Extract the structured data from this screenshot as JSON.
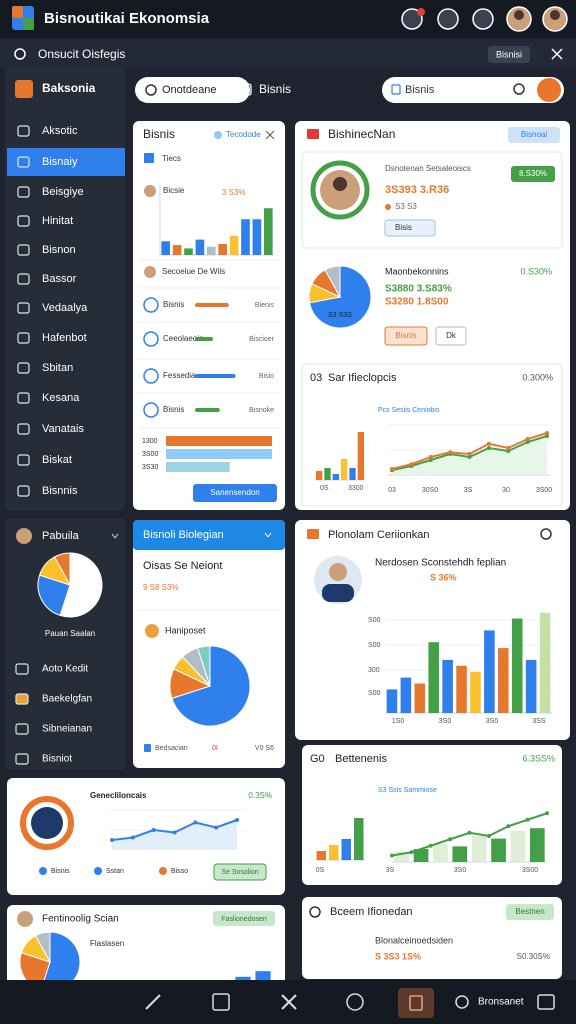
{
  "header": {
    "title": "Bisnoutikai Ekonomsia",
    "search": "Onsucit Oisfegis",
    "search_button": "Bisnisi"
  },
  "sidebar": {
    "title": "Baksonia",
    "items": [
      "Aksotic",
      "Bisnaiy",
      "Beisgiye",
      "Hinitat",
      "Bisnon",
      "Bassor",
      "Vedaalya",
      "Hafenbot",
      "Sbitan",
      "Kesana",
      "Vanatais",
      "Biskat",
      "Bisnnis"
    ]
  },
  "toolbar": {
    "tab": "Onotdeane",
    "link": "Bisnis",
    "search": "Bisnis"
  },
  "panel_a": {
    "title": "Bisnis",
    "badge": "Tecodode",
    "tag": "Tiecs",
    "label": "Bicsie",
    "value": "3 S3%",
    "bars": {
      "ylim": [
        0,
        100
      ],
      "values": [
        25,
        18,
        12,
        28,
        15,
        20,
        35,
        65,
        65,
        85
      ],
      "colors": [
        "#2f80ed",
        "#e8772e",
        "#43a047",
        "#2f80ed",
        "#b0bec5",
        "#e8772e",
        "#fbc02d",
        "#2f80ed",
        "#2f80ed",
        "#43a047"
      ]
    },
    "person": "Secoelue De Wils",
    "rows": [
      {
        "label": "Bisnis",
        "note": "Bienis",
        "progress": 75,
        "color": "#e8772e"
      },
      {
        "label": "Ceeolaeoia",
        "note": "Biscioer",
        "progress": 40,
        "color": "#43a047"
      },
      {
        "label": "Fessedia",
        "note": "Bisio",
        "progress": 90,
        "color": "#2f80ed"
      },
      {
        "label": "Bisnis",
        "note": "Bisnoke",
        "progress": 55,
        "color": "#43a047"
      }
    ],
    "hbars": {
      "xlim": [
        0,
        100
      ],
      "labels": [
        "1300",
        "3S00",
        "3S30"
      ],
      "values": [
        100,
        100,
        60
      ],
      "colors": [
        "#e8772e",
        "#90caf9",
        "#9ed3e6"
      ]
    },
    "button": "Sanensendon"
  },
  "panel_b": {
    "title": "BishinecNan",
    "badge": "Bisnoai",
    "profile": {
      "name": "Dsnotenan Setsaleoiscs",
      "value": "3S393 3.R36",
      "sub": "S3 S3",
      "badge": "8.S30%",
      "select": "Bisis"
    },
    "pie": {
      "values": [
        72,
        10,
        10,
        8
      ],
      "colors": [
        "#2f80ed",
        "#fbc02d",
        "#e8772e",
        "#b0bec5"
      ],
      "label": "S3 S3S"
    },
    "stats": {
      "title": "Maonbekonnins",
      "pct": "0.S30%",
      "line1": "S3880 3.S83%",
      "line2": "S3280 1.8S00",
      "btn1": "Bisnis",
      "btn2": "Dk"
    },
    "trend": {
      "prefix": "03",
      "title": "Sar Ifieclopcis",
      "value": "0.300%",
      "sub": "Pcs Sesiis Ceniobis",
      "bars": {
        "ylim": [
          0,
          100
        ],
        "values": [
          15,
          20,
          10,
          35,
          20,
          80
        ],
        "colors": [
          "#e8772e",
          "#43a047",
          "#2f80ed",
          "#fbc02d",
          "#2f80ed",
          "#e8772e"
        ]
      },
      "lines": [
        {
          "ylim": [
            0,
            100
          ],
          "values": [
            10,
            18,
            30,
            38,
            35,
            52,
            45,
            60,
            70
          ],
          "color": "#e8772e"
        },
        {
          "ylim": [
            0,
            100
          ],
          "values": [
            8,
            15,
            25,
            35,
            30,
            45,
            40,
            55,
            65
          ],
          "color": "#43a047"
        }
      ],
      "left_labels": [
        "0S",
        "3300"
      ],
      "xlabels": [
        "03",
        "30S0",
        "3S",
        "30",
        "3S00"
      ]
    }
  },
  "profile_card": {
    "title": "Pabuila",
    "pie": {
      "values": [
        55,
        25,
        12,
        8
      ],
      "colors": [
        "#ffffff",
        "#2f80ed",
        "#fbc02d",
        "#e8772e"
      ]
    },
    "caption": "Pauan Saalan",
    "items": [
      "Aoto Kedit",
      "Baekelgfan",
      "Sibneianan",
      "Bisniot"
    ]
  },
  "panel_c": {
    "header": "Bisnoli Biolegian",
    "subtitle": "Oisas Se Neiont",
    "value": "9 S8 S3%",
    "section": "Haniposet",
    "pie": {
      "values": [
        70,
        12,
        6,
        7,
        5
      ],
      "colors": [
        "#2f80ed",
        "#e8772e",
        "#fbc02d",
        "#b0bec5",
        "#80cbc4"
      ]
    },
    "footer_left": "Bedsacian",
    "footer_mid": "0I",
    "footer_right": "V0 S6"
  },
  "panel_d": {
    "title": "Plonolam Ceriionkan",
    "subtitle": "Nerdosen Sconstehdh feplian",
    "value": "S 36%",
    "bars": {
      "ylim": [
        0,
        100
      ],
      "values": [
        20,
        30,
        25,
        60,
        45,
        40,
        35,
        70,
        55,
        80,
        45,
        85
      ],
      "colors": [
        "#2f80ed",
        "#2f80ed",
        "#e8772e",
        "#43a047",
        "#2f80ed",
        "#e8772e",
        "#fbc02d",
        "#2f80ed",
        "#e8772e",
        "#43a047",
        "#2f80ed",
        "#c5e1a5"
      ]
    },
    "ylabels": [
      "S00",
      "S00",
      "300",
      "S00"
    ],
    "xlabels": [
      "1S0",
      "3S0",
      "3S0",
      "3SS"
    ]
  },
  "panel_e": {
    "prefix": "G0",
    "title": "Bettenenis",
    "value": "6.3SS%",
    "sub": "S3 Ssis Sammiose",
    "bars": {
      "ylim": [
        0,
        100
      ],
      "values": [
        15,
        25,
        35,
        70
      ],
      "colors": [
        "#e8772e",
        "#fbc02d",
        "#2f80ed",
        "#43a047"
      ]
    },
    "bars2": {
      "ylim": [
        0,
        100
      ],
      "values": [
        20,
        25,
        35,
        30,
        50,
        45,
        60,
        65
      ],
      "colors": [
        "#e0eed8",
        "#43a047",
        "#e0eed8",
        "#43a047",
        "#e0eed8",
        "#43a047",
        "#e0eed8",
        "#43a047"
      ]
    },
    "line": {
      "ylim": [
        0,
        100
      ],
      "values": [
        10,
        15,
        25,
        35,
        45,
        40,
        55,
        65,
        75
      ],
      "color": "#43a047"
    },
    "xlabels": [
      "0S",
      "3S",
      "3S0",
      "3S00"
    ]
  },
  "panel_f": {
    "title": "Genecliloncais",
    "value": "0.3S%",
    "line": {
      "ylim": [
        0,
        100
      ],
      "values": [
        20,
        25,
        40,
        35,
        55,
        45,
        60
      ],
      "color": "#2f80ed"
    },
    "legend": [
      "Bisnis",
      "Sstan",
      "Bisso"
    ],
    "button": "Se Snsolion"
  },
  "panel_g": {
    "title": "Fentinoolig Scian",
    "badge": "Faslionedosen",
    "sub": "Flaslasen",
    "pie": {
      "values": [
        55,
        25,
        12,
        8
      ],
      "colors": [
        "#2f80ed",
        "#e8772e",
        "#fbc02d",
        "#b0bec5"
      ]
    },
    "bars": {
      "ylim": [
        0,
        100
      ],
      "values": [
        40,
        60
      ],
      "colors": [
        "#2f80ed",
        "#2f80ed"
      ]
    }
  },
  "panel_h": {
    "title": "Bceem Ifionedan",
    "badge": "Bestnen",
    "sub": "Blonalceinoedsiden",
    "value": "S 3S3 1S%",
    "pct": "S0.30S%"
  },
  "bottom_nav": {
    "label": "Bronsanet"
  }
}
